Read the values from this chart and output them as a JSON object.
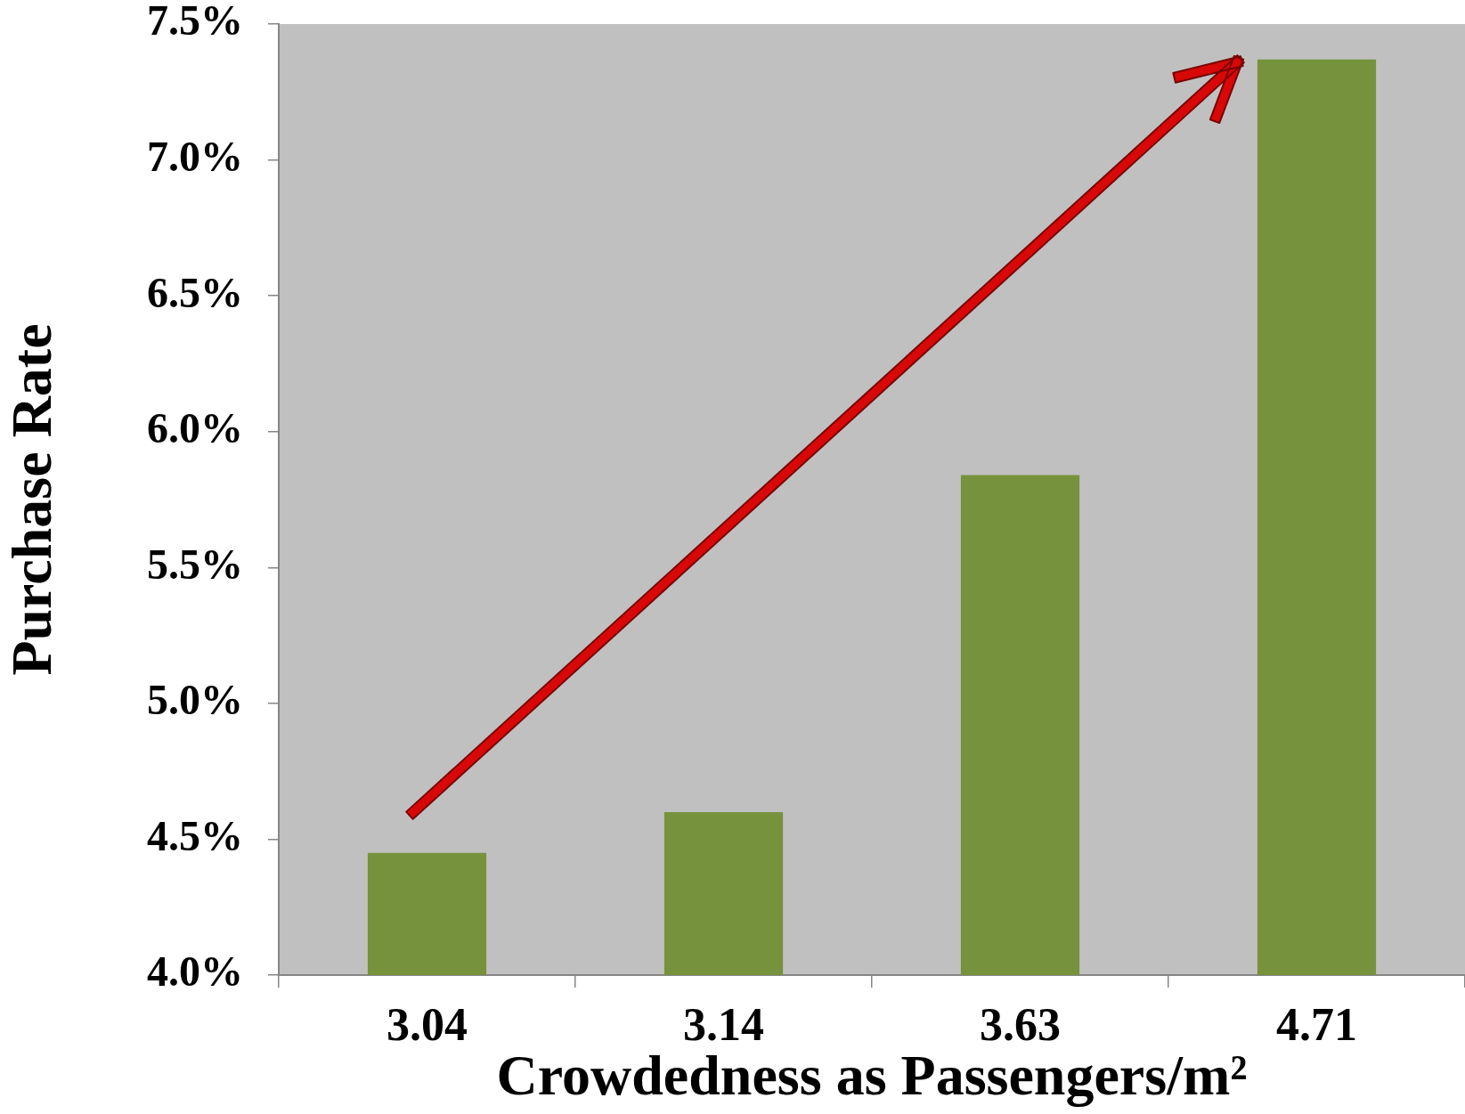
{
  "chart_data": {
    "type": "bar",
    "xlabel": "Crowdedness as Passengers/m²",
    "ylabel": "Purchase Rate",
    "categories": [
      "3.04",
      "3.14",
      "3.63",
      "4.71"
    ],
    "values": [
      4.45,
      4.6,
      5.84,
      7.37
    ],
    "color": "#76923c",
    "ylim": [
      4.0,
      7.5
    ],
    "yticks": [
      {
        "value": 4.0,
        "label": "4.0%"
      },
      {
        "value": 4.5,
        "label": "4.5%"
      },
      {
        "value": 5.0,
        "label": "5.0%"
      },
      {
        "value": 5.5,
        "label": "5.5%"
      },
      {
        "value": 6.0,
        "label": "6.0%"
      },
      {
        "value": 6.5,
        "label": "6.5%"
      },
      {
        "value": 7.0,
        "label": "7.0%"
      },
      {
        "value": 7.5,
        "label": "7.5%"
      }
    ],
    "grid": false
  }
}
